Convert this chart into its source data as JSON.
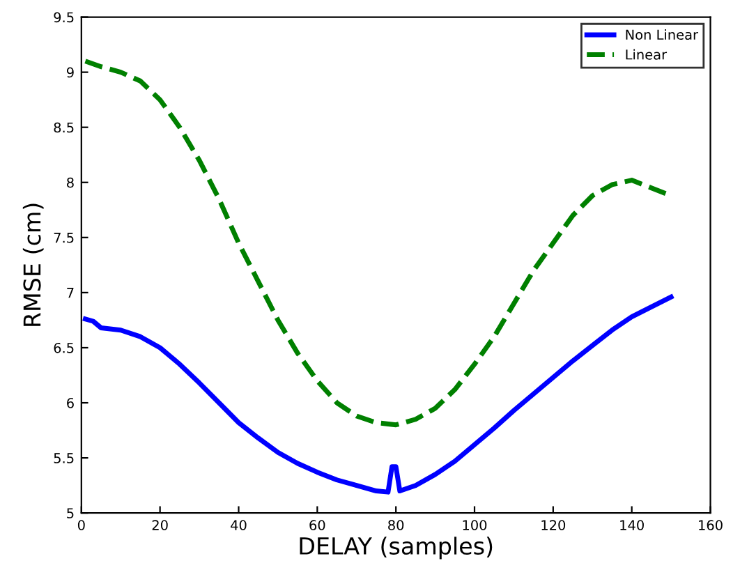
{
  "chart_data": {
    "type": "line",
    "xlabel": "DELAY (samples)",
    "ylabel": "RMSE (cm)",
    "xlim": [
      0,
      160
    ],
    "xticks": [
      0,
      20,
      40,
      60,
      80,
      100,
      120,
      140,
      160
    ],
    "ylim": [
      5,
      9.5
    ],
    "yticks": [
      5,
      5.5,
      6,
      6.5,
      7,
      7.5,
      8,
      8.5,
      9,
      9.5
    ],
    "grid": false,
    "legend": "top right",
    "series": [
      {
        "name": "Non Linear",
        "color": "#0000ff",
        "line_style": "solid",
        "x": [
          1,
          3,
          5,
          10,
          15,
          20,
          25,
          30,
          35,
          40,
          45,
          50,
          55,
          60,
          65,
          70,
          75,
          78,
          79,
          80,
          81,
          85,
          90,
          95,
          100,
          105,
          110,
          115,
          120,
          125,
          130,
          135,
          140,
          145,
          150
        ],
        "values": [
          6.76,
          6.74,
          6.68,
          6.66,
          6.6,
          6.5,
          6.35,
          6.18,
          6.0,
          5.82,
          5.68,
          5.55,
          5.45,
          5.37,
          5.3,
          5.25,
          5.2,
          5.19,
          5.42,
          5.42,
          5.2,
          5.25,
          5.35,
          5.47,
          5.62,
          5.77,
          5.93,
          6.08,
          6.23,
          6.38,
          6.52,
          6.66,
          6.78,
          6.87,
          6.96
        ]
      },
      {
        "name": "Linear",
        "color": "#008000",
        "line_style": "dashed",
        "x": [
          1,
          5,
          10,
          15,
          20,
          25,
          30,
          35,
          40,
          45,
          50,
          55,
          60,
          65,
          70,
          75,
          80,
          85,
          90,
          95,
          100,
          105,
          110,
          115,
          120,
          125,
          130,
          135,
          140,
          145,
          150
        ],
        "values": [
          9.1,
          9.05,
          9.0,
          8.92,
          8.75,
          8.5,
          8.2,
          7.85,
          7.45,
          7.1,
          6.75,
          6.45,
          6.2,
          6.0,
          5.88,
          5.82,
          5.8,
          5.85,
          5.95,
          6.12,
          6.35,
          6.6,
          6.9,
          7.2,
          7.45,
          7.7,
          7.88,
          7.98,
          8.02,
          7.95,
          7.88
        ]
      }
    ]
  }
}
